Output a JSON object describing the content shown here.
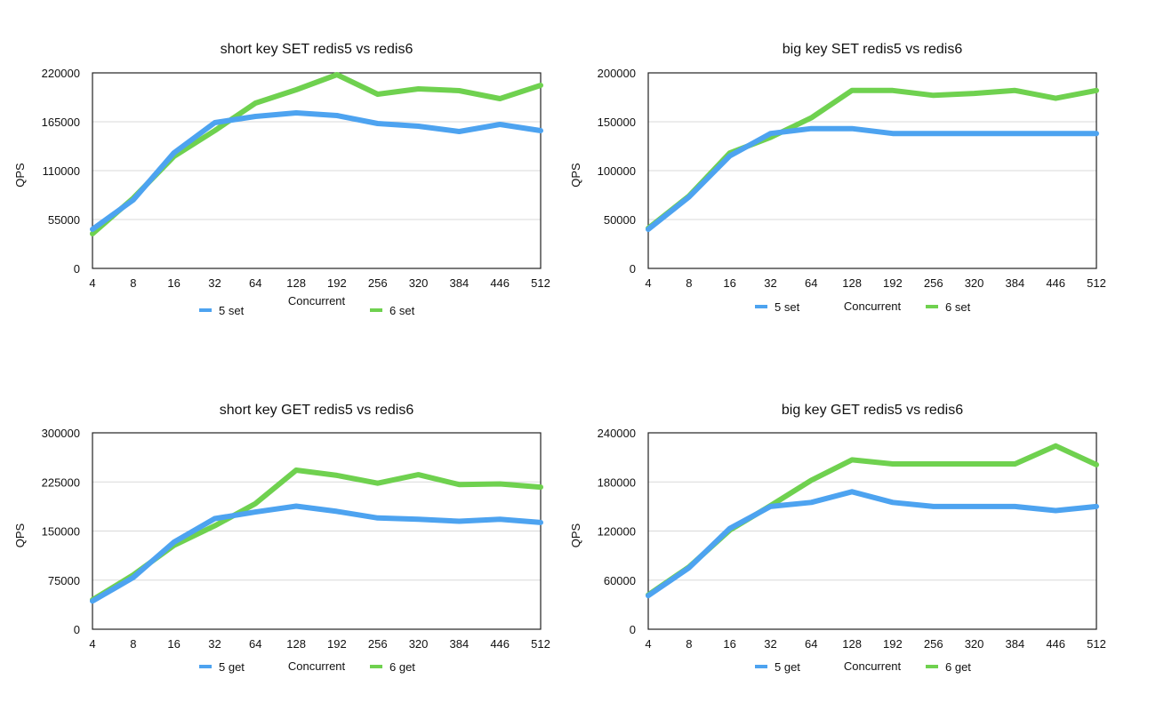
{
  "chart_data": [
    {
      "type": "line",
      "title": "short key SET redis5 vs redis6",
      "xlabel": "Concurrent",
      "ylabel": "QPS",
      "categories": [
        "4",
        "8",
        "16",
        "32",
        "64",
        "128",
        "192",
        "256",
        "320",
        "384",
        "446",
        "512"
      ],
      "ylim": [
        0,
        220000
      ],
      "yticks": [
        "0",
        "55000",
        "110000",
        "165000",
        "220000"
      ],
      "grid": true,
      "legend": "bottom",
      "series": [
        {
          "name": "5 set",
          "color": "#4da3f0",
          "values": [
            44000,
            77000,
            130000,
            164000,
            171000,
            175000,
            172000,
            163000,
            160000,
            154000,
            162000,
            155000
          ]
        },
        {
          "name": "6 set",
          "color": "#6fd14f",
          "values": [
            39000,
            79000,
            126000,
            155000,
            186000,
            201000,
            218000,
            196000,
            202000,
            200000,
            191000,
            206000
          ]
        }
      ]
    },
    {
      "type": "line",
      "title": "big key SET redis5 vs redis6",
      "xlabel": "Concurrent",
      "ylabel": "QPS",
      "categories": [
        "4",
        "8",
        "16",
        "32",
        "64",
        "128",
        "192",
        "256",
        "320",
        "384",
        "446",
        "512"
      ],
      "ylim": [
        0,
        200000
      ],
      "yticks": [
        "0",
        "50000",
        "100000",
        "150000",
        "200000"
      ],
      "grid": true,
      "legend": "bottom",
      "series": [
        {
          "name": "5 set",
          "color": "#4da3f0",
          "values": [
            40000,
            73000,
            115000,
            138000,
            143000,
            143000,
            138000,
            138000,
            138000,
            138000,
            138000,
            138000
          ]
        },
        {
          "name": "6 set",
          "color": "#6fd14f",
          "values": [
            41000,
            74000,
            118000,
            134000,
            154000,
            182000,
            182000,
            177000,
            179000,
            182000,
            174000,
            182000
          ]
        }
      ]
    },
    {
      "type": "line",
      "title": "short key GET redis5 vs redis6",
      "xlabel": "Concurrent",
      "ylabel": "QPS",
      "categories": [
        "4",
        "8",
        "16",
        "32",
        "64",
        "128",
        "192",
        "256",
        "320",
        "384",
        "446",
        "512"
      ],
      "ylim": [
        0,
        300000
      ],
      "yticks": [
        "0",
        "75000",
        "150000",
        "225000",
        "300000"
      ],
      "grid": true,
      "legend": "bottom",
      "series": [
        {
          "name": "5 get",
          "color": "#4da3f0",
          "values": [
            43000,
            79000,
            133000,
            169000,
            179000,
            188000,
            180000,
            170000,
            168000,
            165000,
            168000,
            163000
          ]
        },
        {
          "name": "6 get",
          "color": "#6fd14f",
          "values": [
            45000,
            83000,
            128000,
            158000,
            192000,
            243000,
            235000,
            223000,
            236000,
            221000,
            222000,
            217000
          ]
        }
      ]
    },
    {
      "type": "line",
      "title": "big key GET redis5 vs redis6",
      "xlabel": "Concurrent",
      "ylabel": "QPS",
      "categories": [
        "4",
        "8",
        "16",
        "32",
        "64",
        "128",
        "192",
        "256",
        "320",
        "384",
        "446",
        "512"
      ],
      "ylim": [
        0,
        240000
      ],
      "yticks": [
        "0",
        "60000",
        "120000",
        "180000",
        "240000"
      ],
      "grid": true,
      "legend": "bottom",
      "series": [
        {
          "name": "5 get",
          "color": "#4da3f0",
          "values": [
            41000,
            75000,
            123000,
            150000,
            155000,
            168000,
            155000,
            150000,
            150000,
            150000,
            145000,
            150000
          ]
        },
        {
          "name": "6 get",
          "color": "#6fd14f",
          "values": [
            42000,
            76000,
            121000,
            151000,
            182000,
            207000,
            202000,
            202000,
            202000,
            202000,
            224000,
            201000
          ]
        }
      ]
    }
  ]
}
